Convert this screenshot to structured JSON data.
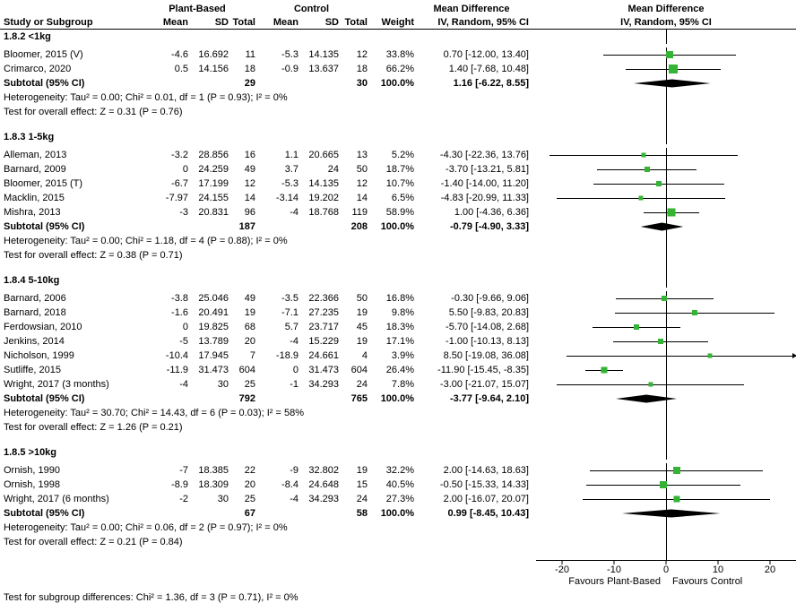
{
  "colors": {
    "background": "#ffffff",
    "text": "#000000",
    "marker": "#35b335",
    "diamond": "#000000",
    "line": "#000000"
  },
  "header": {
    "study_col": "Study or Subgroup",
    "group1": "Plant-Based",
    "group2": "Control",
    "mean": "Mean",
    "sd": "SD",
    "total": "Total",
    "weight": "Weight",
    "md_title": "Mean Difference",
    "md_sub": "IV, Random, 95% CI"
  },
  "footer_note": "Test for subgroup differences: Chi² = 1.36, df = 3 (P = 0.71), I² = 0%",
  "chart_data": {
    "type": "forest",
    "effect_measure": "Mean Difference",
    "model": "IV, Random, 95% CI",
    "x_range": [
      -25,
      25
    ],
    "x_ticks": [
      -20,
      -10,
      0,
      10,
      20
    ],
    "favours_left": "Favours Plant-Based",
    "favours_right": "Favours Control",
    "subgroups": [
      {
        "title": "1.8.2 <1kg",
        "studies": [
          {
            "study": "Bloomer, 2015 (V)",
            "mean1": "-4.6",
            "sd1": "16.692",
            "total1": "11",
            "mean2": "-5.3",
            "sd2": "14.135",
            "total2": "12",
            "weight": "33.8%",
            "md": "0.70 [-12.00, 13.40]"
          },
          {
            "study": "Crimarco, 2020",
            "mean1": "0.5",
            "sd1": "14.156",
            "total1": "18",
            "mean2": "-0.9",
            "sd2": "13.637",
            "total2": "18",
            "weight": "66.2%",
            "md": "1.40 [-7.68, 10.48]"
          }
        ],
        "subtotal": {
          "study": "Subtotal (95% CI)",
          "total1": "29",
          "total2": "30",
          "weight": "100.0%",
          "md": "1.16 [-6.22, 8.55]"
        },
        "heterogeneity": "Heterogeneity: Tau² = 0.00; Chi² = 0.01, df = 1 (P = 0.93); I² = 0%",
        "overall_effect": "Test for overall effect: Z = 0.31 (P = 0.76)"
      },
      {
        "title": "1.8.3 1-5kg",
        "studies": [
          {
            "study": "Alleman, 2013",
            "mean1": "-3.2",
            "sd1": "28.856",
            "total1": "16",
            "mean2": "1.1",
            "sd2": "20.665",
            "total2": "13",
            "weight": "5.2%",
            "md": "-4.30 [-22.36, 13.76]"
          },
          {
            "study": "Barnard, 2009",
            "mean1": "0",
            "sd1": "24.259",
            "total1": "49",
            "mean2": "3.7",
            "sd2": "24",
            "total2": "50",
            "weight": "18.7%",
            "md": "-3.70 [-13.21, 5.81]"
          },
          {
            "study": "Bloomer, 2015 (T)",
            "mean1": "-6.7",
            "sd1": "17.199",
            "total1": "12",
            "mean2": "-5.3",
            "sd2": "14.135",
            "total2": "12",
            "weight": "10.7%",
            "md": "-1.40 [-14.00, 11.20]"
          },
          {
            "study": "Macklin, 2015",
            "mean1": "-7.97",
            "sd1": "24.155",
            "total1": "14",
            "mean2": "-3.14",
            "sd2": "19.202",
            "total2": "14",
            "weight": "6.5%",
            "md": "-4.83 [-20.99, 11.33]"
          },
          {
            "study": "Mishra, 2013",
            "mean1": "-3",
            "sd1": "20.831",
            "total1": "96",
            "mean2": "-4",
            "sd2": "18.768",
            "total2": "119",
            "weight": "58.9%",
            "md": "1.00 [-4.36, 6.36]"
          }
        ],
        "subtotal": {
          "study": "Subtotal (95% CI)",
          "total1": "187",
          "total2": "208",
          "weight": "100.0%",
          "md": "-0.79 [-4.90, 3.33]"
        },
        "heterogeneity": "Heterogeneity: Tau² = 0.00; Chi² = 1.18, df = 4 (P = 0.88); I² = 0%",
        "overall_effect": "Test for overall effect: Z = 0.38 (P = 0.71)"
      },
      {
        "title": "1.8.4 5-10kg",
        "studies": [
          {
            "study": "Barnard, 2006",
            "mean1": "-3.8",
            "sd1": "25.046",
            "total1": "49",
            "mean2": "-3.5",
            "sd2": "22.366",
            "total2": "50",
            "weight": "16.8%",
            "md": "-0.30 [-9.66, 9.06]"
          },
          {
            "study": "Barnard, 2018",
            "mean1": "-1.6",
            "sd1": "20.491",
            "total1": "19",
            "mean2": "-7.1",
            "sd2": "27.235",
            "total2": "19",
            "weight": "9.8%",
            "md": "5.50 [-9.83, 20.83]"
          },
          {
            "study": "Ferdowsian, 2010",
            "mean1": "0",
            "sd1": "19.825",
            "total1": "68",
            "mean2": "5.7",
            "sd2": "23.717",
            "total2": "45",
            "weight": "18.3%",
            "md": "-5.70 [-14.08, 2.68]"
          },
          {
            "study": "Jenkins, 2014",
            "mean1": "-5",
            "sd1": "13.789",
            "total1": "20",
            "mean2": "-4",
            "sd2": "15.229",
            "total2": "19",
            "weight": "17.1%",
            "md": "-1.00 [-10.13, 8.13]"
          },
          {
            "study": "Nicholson, 1999",
            "mean1": "-10.4",
            "sd1": "17.945",
            "total1": "7",
            "mean2": "-18.9",
            "sd2": "24.661",
            "total2": "4",
            "weight": "3.9%",
            "md": "8.50 [-19.08, 36.08]"
          },
          {
            "study": "Sutliffe, 2015",
            "mean1": "-11.9",
            "sd1": "31.473",
            "total1": "604",
            "mean2": "0",
            "sd2": "31.473",
            "total2": "604",
            "weight": "26.4%",
            "md": "-11.90 [-15.45, -8.35]"
          },
          {
            "study": "Wright, 2017 (3 months)",
            "mean1": "-4",
            "sd1": "30",
            "total1": "25",
            "mean2": "-1",
            "sd2": "34.293",
            "total2": "24",
            "weight": "7.8%",
            "md": "-3.00 [-21.07, 15.07]"
          }
        ],
        "subtotal": {
          "study": "Subtotal (95% CI)",
          "total1": "792",
          "total2": "765",
          "weight": "100.0%",
          "md": "-3.77 [-9.64, 2.10]"
        },
        "heterogeneity": "Heterogeneity: Tau² = 30.70; Chi² = 14.43, df = 6 (P = 0.03); I² = 58%",
        "overall_effect": "Test for overall effect: Z = 1.26 (P = 0.21)"
      },
      {
        "title": "1.8.5 >10kg",
        "studies": [
          {
            "study": "Ornish, 1990",
            "mean1": "-7",
            "sd1": "18.385",
            "total1": "22",
            "mean2": "-9",
            "sd2": "32.802",
            "total2": "19",
            "weight": "32.2%",
            "md": "2.00 [-14.63, 18.63]"
          },
          {
            "study": "Ornish, 1998",
            "mean1": "-8.9",
            "sd1": "18.309",
            "total1": "20",
            "mean2": "-8.4",
            "sd2": "24.648",
            "total2": "15",
            "weight": "40.5%",
            "md": "-0.50 [-15.33, 14.33]"
          },
          {
            "study": "Wright, 2017 (6 months)",
            "mean1": "-2",
            "sd1": "30",
            "total1": "25",
            "mean2": "-4",
            "sd2": "34.293",
            "total2": "24",
            "weight": "27.3%",
            "md": "2.00 [-16.07, 20.07]"
          }
        ],
        "subtotal": {
          "study": "Subtotal (95% CI)",
          "total1": "67",
          "total2": "58",
          "weight": "100.0%",
          "md": "0.99 [-8.45, 10.43]"
        },
        "heterogeneity": "Heterogeneity: Tau² = 0.00; Chi² = 0.06, df = 2 (P = 0.97); I² = 0%",
        "overall_effect": "Test for overall effect: Z = 0.21 (P = 0.84)"
      }
    ]
  }
}
